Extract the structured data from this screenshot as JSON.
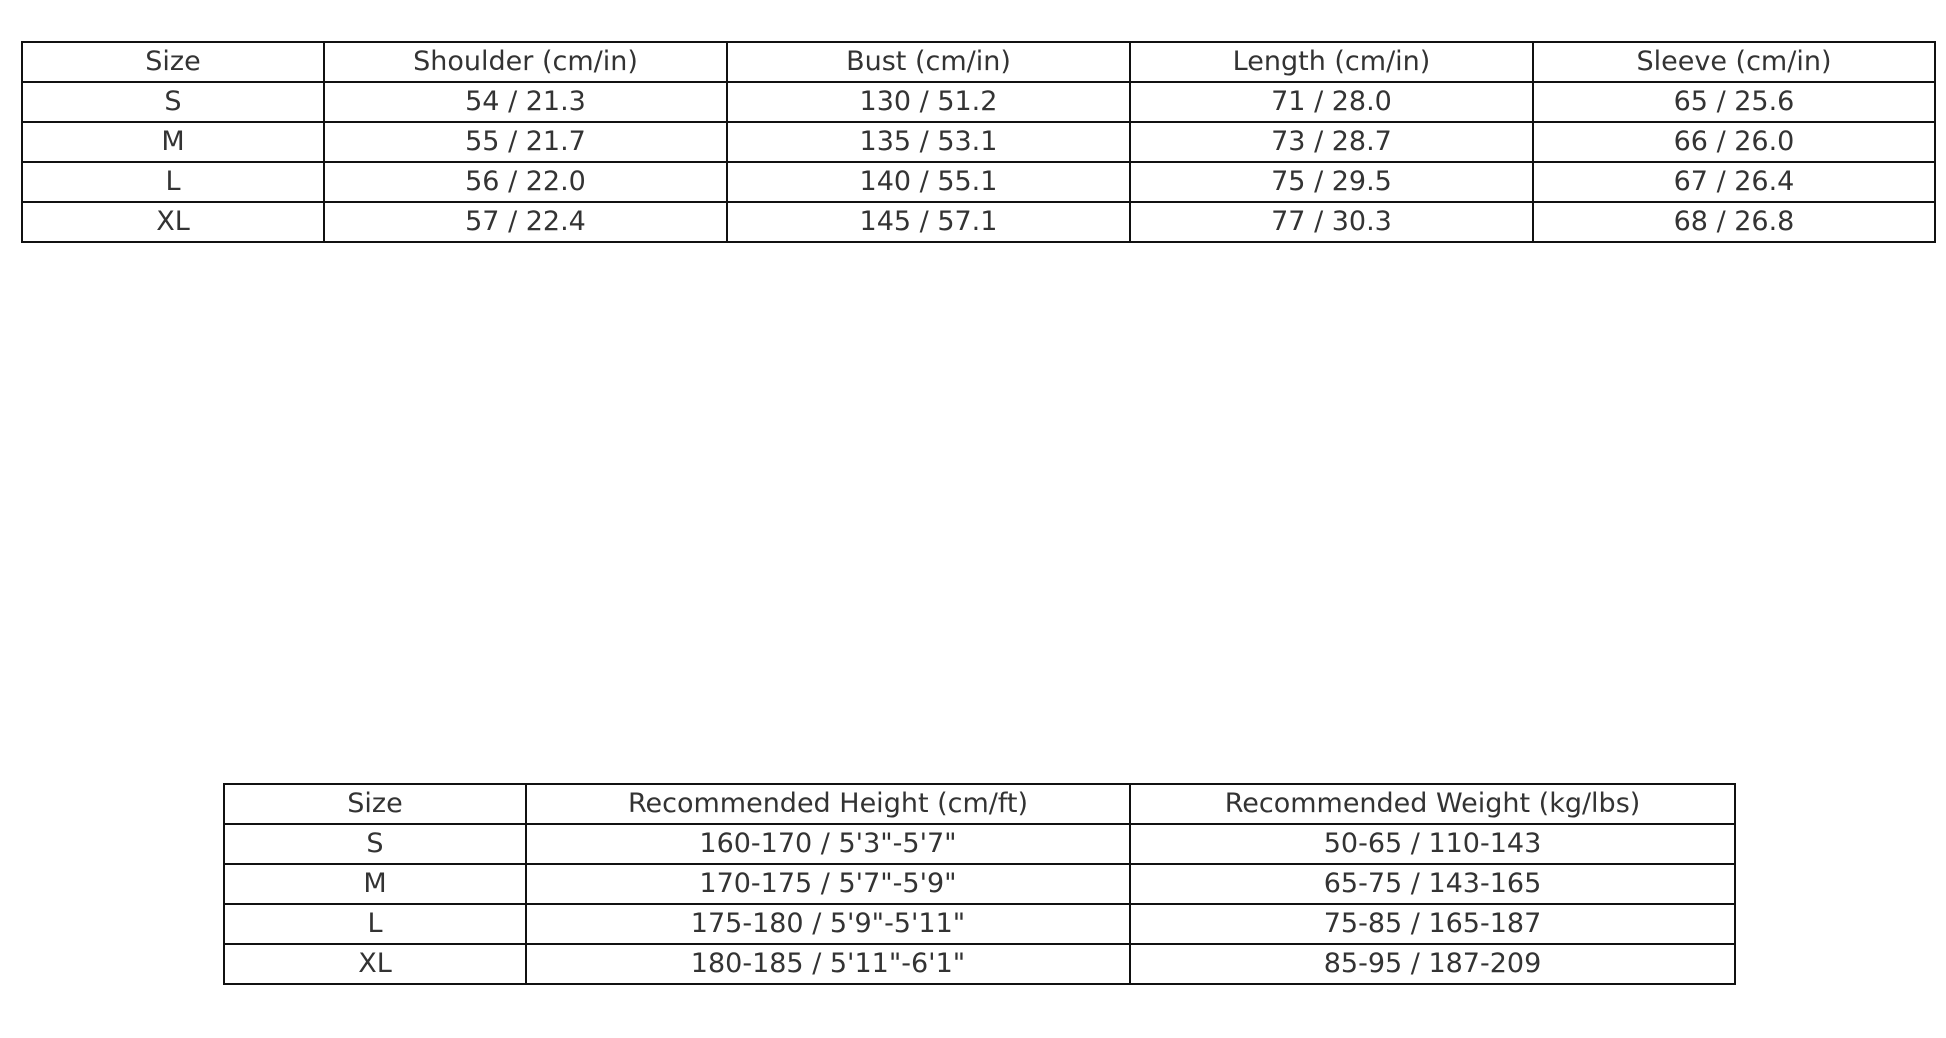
{
  "measurements": {
    "headers": [
      "Size",
      "Shoulder (cm/in)",
      "Bust (cm/in)",
      "Length (cm/in)",
      "Sleeve (cm/in)"
    ],
    "rows": [
      [
        "S",
        "54 / 21.3",
        "130 / 51.2",
        "71 / 28.0",
        "65 / 25.6"
      ],
      [
        "M",
        "55 / 21.7",
        "135 / 53.1",
        "73 / 28.7",
        "66 / 26.0"
      ],
      [
        "L",
        "56 / 22.0",
        "140 / 55.1",
        "75 / 29.5",
        "67 / 26.4"
      ],
      [
        "XL",
        "57 / 22.4",
        "145 / 57.1",
        "77 / 30.3",
        "68 / 26.8"
      ]
    ]
  },
  "recommendations": {
    "headers": [
      "Size",
      "Recommended Height (cm/ft)",
      "Recommended Weight (kg/lbs)"
    ],
    "rows": [
      [
        "S",
        "160-170 / 5'3\"-5'7\"",
        "50-65 / 110-143"
      ],
      [
        "M",
        "170-175 / 5'7\"-5'9\"",
        "65-75 / 143-165"
      ],
      [
        "L",
        "175-180 / 5'9\"-5'11\"",
        "75-85 / 165-187"
      ],
      [
        "XL",
        "180-185 / 5'11\"-6'1\"",
        "85-95 / 187-209"
      ]
    ]
  }
}
